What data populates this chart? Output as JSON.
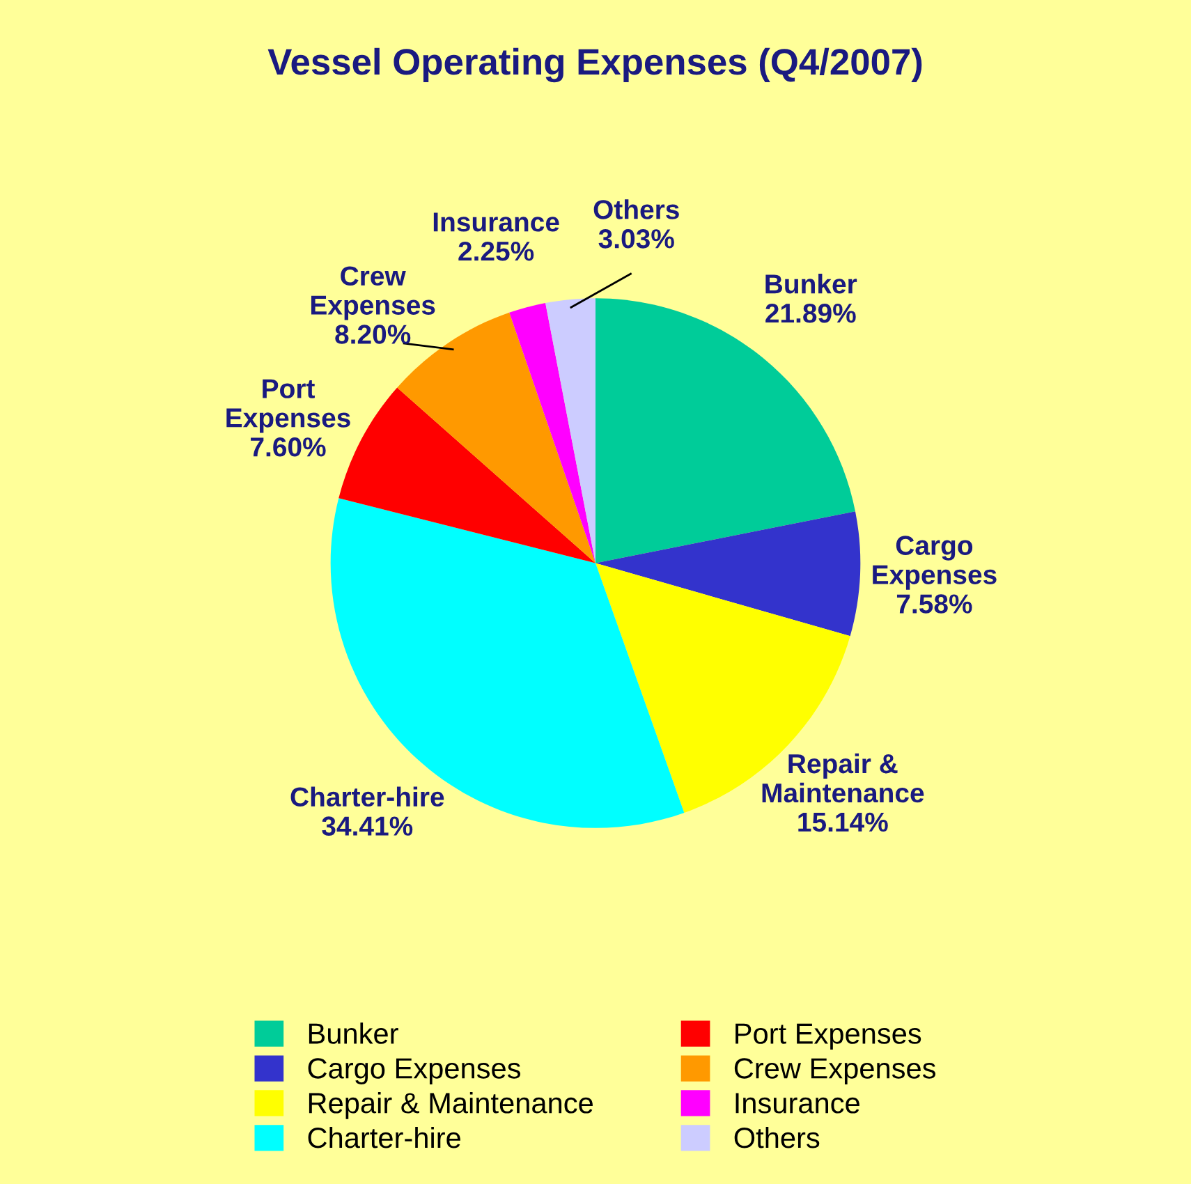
{
  "chart_data": {
    "type": "pie",
    "title": "Vessel Operating Expenses (Q4/2007)",
    "categories": [
      "Bunker",
      "Cargo Expenses",
      "Repair & Maintenance",
      "Charter-hire",
      "Port Expenses",
      "Crew Expenses",
      "Insurance",
      "Others"
    ],
    "values": [
      21.89,
      7.58,
      15.14,
      34.41,
      7.6,
      8.2,
      2.25,
      3.03
    ],
    "value_labels": [
      "21.89%",
      "7.58%",
      "15.14%",
      "34.41%",
      "7.60%",
      "8.20%",
      "2.25%",
      "3.03%"
    ],
    "colors": [
      "#00cc99",
      "#3333cc",
      "#ffff00",
      "#00ffff",
      "#ff0000",
      "#ff9900",
      "#ff00ff",
      "#ccccff"
    ],
    "legend": "bottom"
  }
}
